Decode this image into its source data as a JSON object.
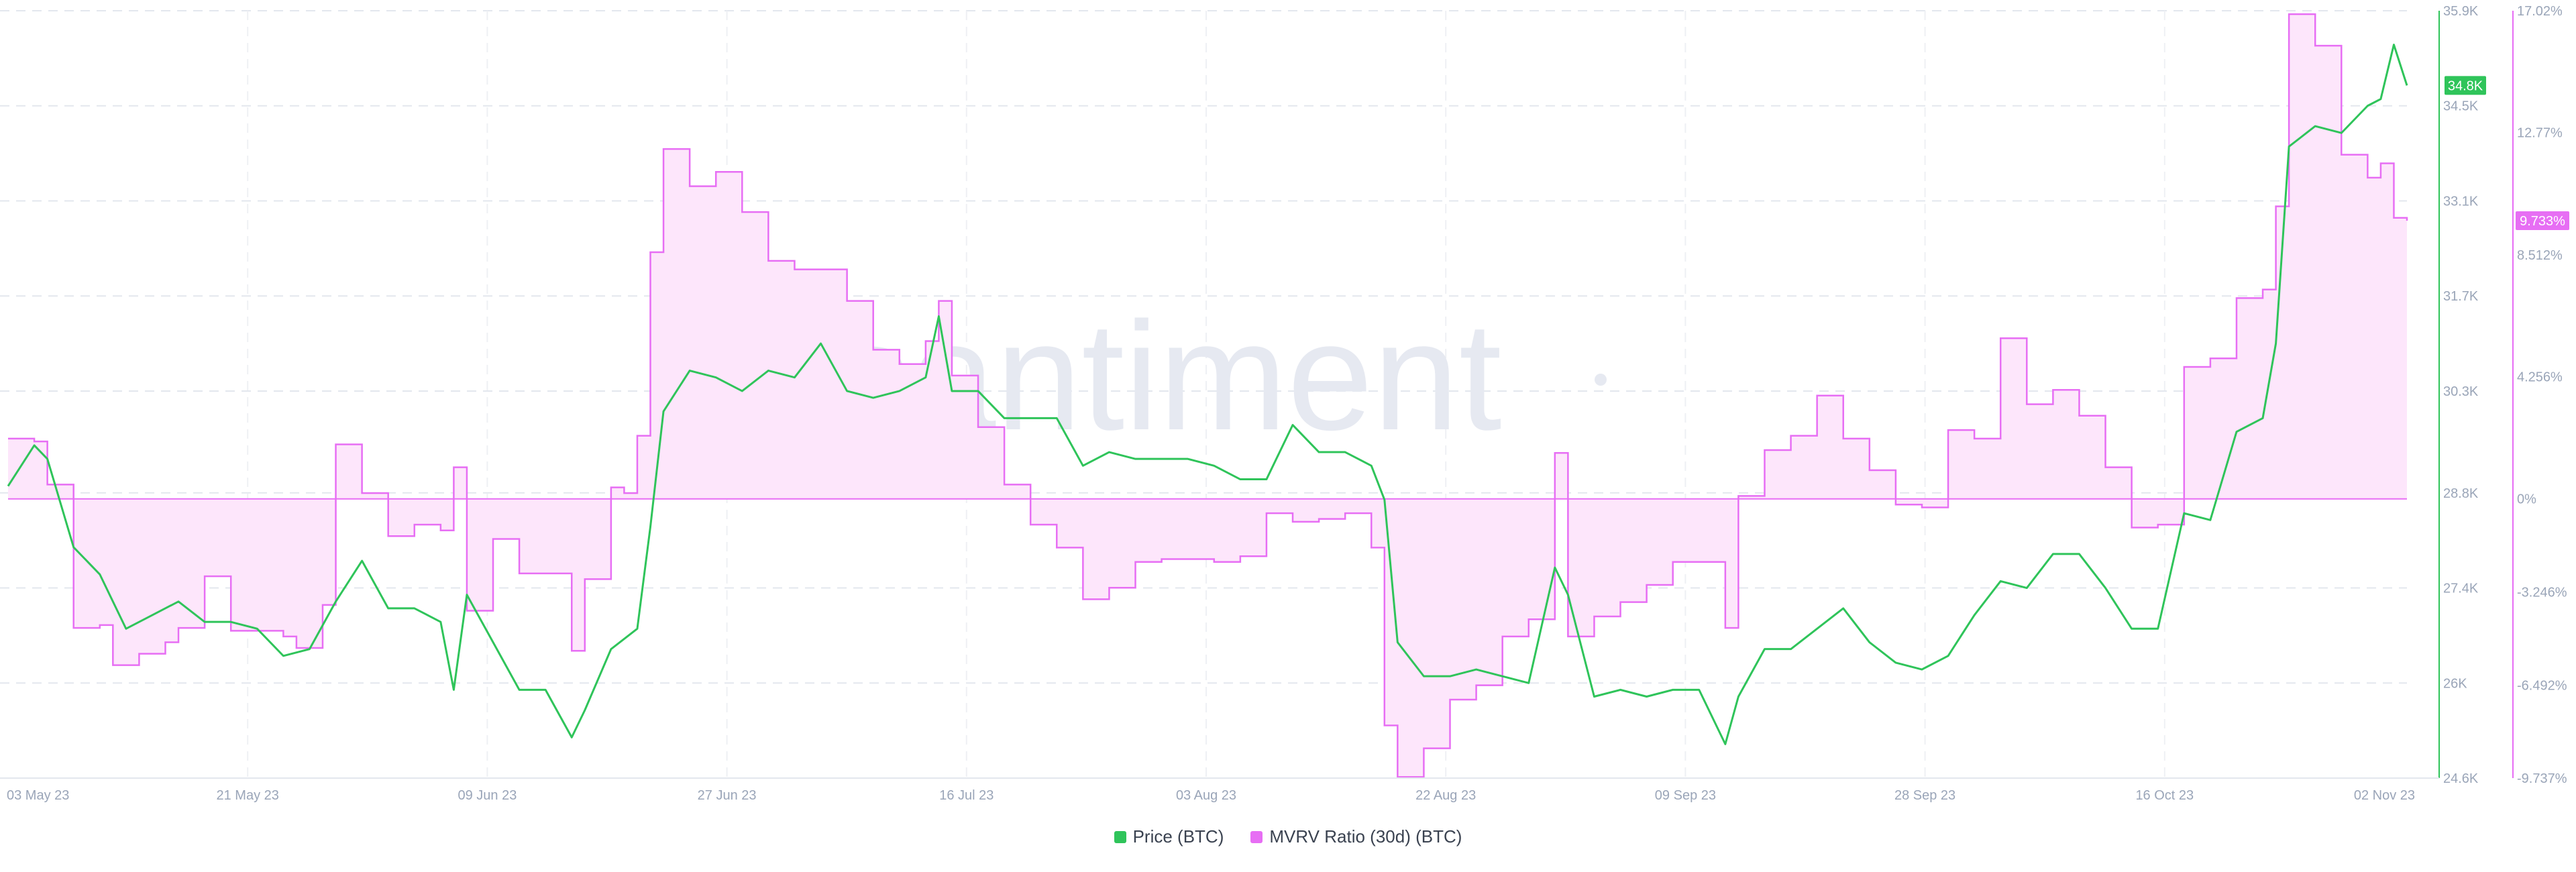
{
  "chart_data": {
    "type": "line",
    "watermark": "santiment",
    "x_ticks": [
      "03 May 23",
      "21 May 23",
      "09 Jun 23",
      "27 Jun 23",
      "16 Jul 23",
      "03 Aug 23",
      "22 Aug 23",
      "09 Sep 23",
      "28 Sep 23",
      "16 Oct 23",
      "02 Nov 23"
    ],
    "x_range": [
      "2023-05-03",
      "2023-11-02"
    ],
    "y_left_price": {
      "ticks": [
        "24.6K",
        "26K",
        "27.4K",
        "28.8K",
        "30.3K",
        "31.7K",
        "33.1K",
        "34.5K",
        "35.9K"
      ],
      "range": [
        24.6,
        35.9
      ],
      "unit": "K USD",
      "current_label": "34.8K"
    },
    "y_right_mvrv": {
      "ticks": [
        "-9.737%",
        "-6.492%",
        "-3.246%",
        "0%",
        "4.256%",
        "8.512%",
        "12.77%",
        "17.02%"
      ],
      "range": [
        -9.737,
        17.02
      ],
      "current_label": "9.733%"
    },
    "series": [
      {
        "name": "Price (BTC)",
        "color": "#2fc45a",
        "axis": "left",
        "points": [
          [
            "2023-05-03",
            28.9
          ],
          [
            "2023-05-05",
            29.5
          ],
          [
            "2023-05-06",
            29.3
          ],
          [
            "2023-05-08",
            28.0
          ],
          [
            "2023-05-10",
            27.6
          ],
          [
            "2023-05-12",
            26.8
          ],
          [
            "2023-05-14",
            27.0
          ],
          [
            "2023-05-16",
            27.2
          ],
          [
            "2023-05-18",
            26.9
          ],
          [
            "2023-05-20",
            26.9
          ],
          [
            "2023-05-22",
            26.8
          ],
          [
            "2023-05-24",
            26.4
          ],
          [
            "2023-05-26",
            26.5
          ],
          [
            "2023-05-28",
            27.2
          ],
          [
            "2023-05-30",
            27.8
          ],
          [
            "2023-06-01",
            27.1
          ],
          [
            "2023-06-03",
            27.1
          ],
          [
            "2023-06-05",
            26.9
          ],
          [
            "2023-06-06",
            25.9
          ],
          [
            "2023-06-07",
            27.3
          ],
          [
            "2023-06-09",
            26.6
          ],
          [
            "2023-06-11",
            25.9
          ],
          [
            "2023-06-13",
            25.9
          ],
          [
            "2023-06-15",
            25.2
          ],
          [
            "2023-06-16",
            25.6
          ],
          [
            "2023-06-18",
            26.5
          ],
          [
            "2023-06-20",
            26.8
          ],
          [
            "2023-06-21",
            28.3
          ],
          [
            "2023-06-22",
            30.0
          ],
          [
            "2023-06-24",
            30.6
          ],
          [
            "2023-06-26",
            30.5
          ],
          [
            "2023-06-28",
            30.3
          ],
          [
            "2023-06-30",
            30.6
          ],
          [
            "2023-07-02",
            30.5
          ],
          [
            "2023-07-04",
            31.0
          ],
          [
            "2023-07-06",
            30.3
          ],
          [
            "2023-07-08",
            30.2
          ],
          [
            "2023-07-10",
            30.3
          ],
          [
            "2023-07-12",
            30.5
          ],
          [
            "2023-07-13",
            31.4
          ],
          [
            "2023-07-14",
            30.3
          ],
          [
            "2023-07-16",
            30.3
          ],
          [
            "2023-07-18",
            29.9
          ],
          [
            "2023-07-20",
            29.9
          ],
          [
            "2023-07-22",
            29.9
          ],
          [
            "2023-07-24",
            29.2
          ],
          [
            "2023-07-26",
            29.4
          ],
          [
            "2023-07-28",
            29.3
          ],
          [
            "2023-07-30",
            29.3
          ],
          [
            "2023-08-01",
            29.3
          ],
          [
            "2023-08-03",
            29.2
          ],
          [
            "2023-08-05",
            29.0
          ],
          [
            "2023-08-07",
            29.0
          ],
          [
            "2023-08-09",
            29.8
          ],
          [
            "2023-08-11",
            29.4
          ],
          [
            "2023-08-13",
            29.4
          ],
          [
            "2023-08-15",
            29.2
          ],
          [
            "2023-08-16",
            28.7
          ],
          [
            "2023-08-17",
            26.6
          ],
          [
            "2023-08-19",
            26.1
          ],
          [
            "2023-08-21",
            26.1
          ],
          [
            "2023-08-23",
            26.2
          ],
          [
            "2023-08-25",
            26.1
          ],
          [
            "2023-08-27",
            26.0
          ],
          [
            "2023-08-29",
            27.7
          ],
          [
            "2023-08-30",
            27.3
          ],
          [
            "2023-09-01",
            25.8
          ],
          [
            "2023-09-03",
            25.9
          ],
          [
            "2023-09-05",
            25.8
          ],
          [
            "2023-09-07",
            25.9
          ],
          [
            "2023-09-09",
            25.9
          ],
          [
            "2023-09-11",
            25.1
          ],
          [
            "2023-09-12",
            25.8
          ],
          [
            "2023-09-14",
            26.5
          ],
          [
            "2023-09-16",
            26.5
          ],
          [
            "2023-09-18",
            26.8
          ],
          [
            "2023-09-20",
            27.1
          ],
          [
            "2023-09-22",
            26.6
          ],
          [
            "2023-09-24",
            26.3
          ],
          [
            "2023-09-26",
            26.2
          ],
          [
            "2023-09-28",
            26.4
          ],
          [
            "2023-09-30",
            27.0
          ],
          [
            "2023-10-02",
            27.5
          ],
          [
            "2023-10-04",
            27.4
          ],
          [
            "2023-10-06",
            27.9
          ],
          [
            "2023-10-08",
            27.9
          ],
          [
            "2023-10-10",
            27.4
          ],
          [
            "2023-10-12",
            26.8
          ],
          [
            "2023-10-14",
            26.8
          ],
          [
            "2023-10-16",
            28.5
          ],
          [
            "2023-10-18",
            28.4
          ],
          [
            "2023-10-20",
            29.7
          ],
          [
            "2023-10-22",
            29.9
          ],
          [
            "2023-10-23",
            31.0
          ],
          [
            "2023-10-24",
            33.9
          ],
          [
            "2023-10-26",
            34.2
          ],
          [
            "2023-10-28",
            34.1
          ],
          [
            "2023-10-30",
            34.5
          ],
          [
            "2023-10-31",
            34.6
          ],
          [
            "2023-11-01",
            35.4
          ],
          [
            "2023-11-02",
            34.8
          ]
        ]
      },
      {
        "name": "MVRV Ratio (30d) (BTC)",
        "color": "#e76ef4",
        "axis": "right",
        "points": [
          [
            "2023-05-03",
            2.1
          ],
          [
            "2023-05-05",
            2.0
          ],
          [
            "2023-05-06",
            0.5
          ],
          [
            "2023-05-08",
            -4.5
          ],
          [
            "2023-05-10",
            -4.4
          ],
          [
            "2023-05-11",
            -5.8
          ],
          [
            "2023-05-13",
            -5.4
          ],
          [
            "2023-05-15",
            -5.0
          ],
          [
            "2023-05-16",
            -4.5
          ],
          [
            "2023-05-18",
            -2.7
          ],
          [
            "2023-05-20",
            -4.6
          ],
          [
            "2023-05-22",
            -4.6
          ],
          [
            "2023-05-24",
            -4.8
          ],
          [
            "2023-05-25",
            -5.2
          ],
          [
            "2023-05-27",
            -3.7
          ],
          [
            "2023-05-28",
            1.9
          ],
          [
            "2023-05-30",
            0.2
          ],
          [
            "2023-06-01",
            -1.3
          ],
          [
            "2023-06-03",
            -0.9
          ],
          [
            "2023-06-05",
            -1.1
          ],
          [
            "2023-06-06",
            1.1
          ],
          [
            "2023-06-07",
            -3.9
          ],
          [
            "2023-06-09",
            -1.4
          ],
          [
            "2023-06-11",
            -2.6
          ],
          [
            "2023-06-13",
            -2.6
          ],
          [
            "2023-06-15",
            -5.3
          ],
          [
            "2023-06-16",
            -2.8
          ],
          [
            "2023-06-18",
            0.4
          ],
          [
            "2023-06-19",
            0.2
          ],
          [
            "2023-06-20",
            2.2
          ],
          [
            "2023-06-21",
            8.6
          ],
          [
            "2023-06-22",
            12.2
          ],
          [
            "2023-06-24",
            10.9
          ],
          [
            "2023-06-26",
            11.4
          ],
          [
            "2023-06-28",
            10.0
          ],
          [
            "2023-06-30",
            8.3
          ],
          [
            "2023-07-02",
            8.0
          ],
          [
            "2023-07-04",
            8.0
          ],
          [
            "2023-07-06",
            6.9
          ],
          [
            "2023-07-08",
            5.2
          ],
          [
            "2023-07-10",
            4.7
          ],
          [
            "2023-07-12",
            5.5
          ],
          [
            "2023-07-13",
            6.9
          ],
          [
            "2023-07-14",
            4.3
          ],
          [
            "2023-07-16",
            2.5
          ],
          [
            "2023-07-18",
            0.5
          ],
          [
            "2023-07-20",
            -0.9
          ],
          [
            "2023-07-22",
            -1.7
          ],
          [
            "2023-07-24",
            -3.5
          ],
          [
            "2023-07-26",
            -3.1
          ],
          [
            "2023-07-28",
            -2.2
          ],
          [
            "2023-07-30",
            -2.1
          ],
          [
            "2023-08-01",
            -2.1
          ],
          [
            "2023-08-03",
            -2.2
          ],
          [
            "2023-08-05",
            -2.0
          ],
          [
            "2023-08-07",
            -0.5
          ],
          [
            "2023-08-09",
            -0.8
          ],
          [
            "2023-08-11",
            -0.7
          ],
          [
            "2023-08-13",
            -0.5
          ],
          [
            "2023-08-15",
            -1.7
          ],
          [
            "2023-08-16",
            -7.9
          ],
          [
            "2023-08-17",
            -9.7
          ],
          [
            "2023-08-19",
            -8.7
          ],
          [
            "2023-08-21",
            -7.0
          ],
          [
            "2023-08-23",
            -6.5
          ],
          [
            "2023-08-25",
            -4.8
          ],
          [
            "2023-08-27",
            -4.2
          ],
          [
            "2023-08-29",
            1.6
          ],
          [
            "2023-08-30",
            -4.8
          ],
          [
            "2023-09-01",
            -4.1
          ],
          [
            "2023-09-03",
            -3.6
          ],
          [
            "2023-09-05",
            -3.0
          ],
          [
            "2023-09-07",
            -2.2
          ],
          [
            "2023-09-09",
            -2.2
          ],
          [
            "2023-09-11",
            -4.5
          ],
          [
            "2023-09-12",
            0.1
          ],
          [
            "2023-09-14",
            1.7
          ],
          [
            "2023-09-16",
            2.2
          ],
          [
            "2023-09-18",
            3.6
          ],
          [
            "2023-09-20",
            2.1
          ],
          [
            "2023-09-22",
            1.0
          ],
          [
            "2023-09-24",
            -0.2
          ],
          [
            "2023-09-26",
            -0.3
          ],
          [
            "2023-09-28",
            2.4
          ],
          [
            "2023-09-30",
            2.1
          ],
          [
            "2023-10-02",
            5.6
          ],
          [
            "2023-10-04",
            3.3
          ],
          [
            "2023-10-06",
            3.8
          ],
          [
            "2023-10-08",
            2.9
          ],
          [
            "2023-10-10",
            1.1
          ],
          [
            "2023-10-12",
            -1.0
          ],
          [
            "2023-10-14",
            -0.9
          ],
          [
            "2023-10-16",
            4.6
          ],
          [
            "2023-10-18",
            4.9
          ],
          [
            "2023-10-20",
            7.0
          ],
          [
            "2023-10-22",
            7.3
          ],
          [
            "2023-10-23",
            10.2
          ],
          [
            "2023-10-24",
            16.9
          ],
          [
            "2023-10-26",
            15.8
          ],
          [
            "2023-10-28",
            12.0
          ],
          [
            "2023-10-30",
            11.2
          ],
          [
            "2023-10-31",
            11.7
          ],
          [
            "2023-11-01",
            9.8
          ],
          [
            "2023-11-02",
            9.7
          ]
        ]
      }
    ],
    "legend": [
      {
        "label": "Price (BTC)",
        "color": "#2fc45a"
      },
      {
        "label": "MVRV Ratio (30d) (BTC)",
        "color": "#e76ef4"
      }
    ],
    "legend_position": "bottom-center",
    "grid": true
  }
}
